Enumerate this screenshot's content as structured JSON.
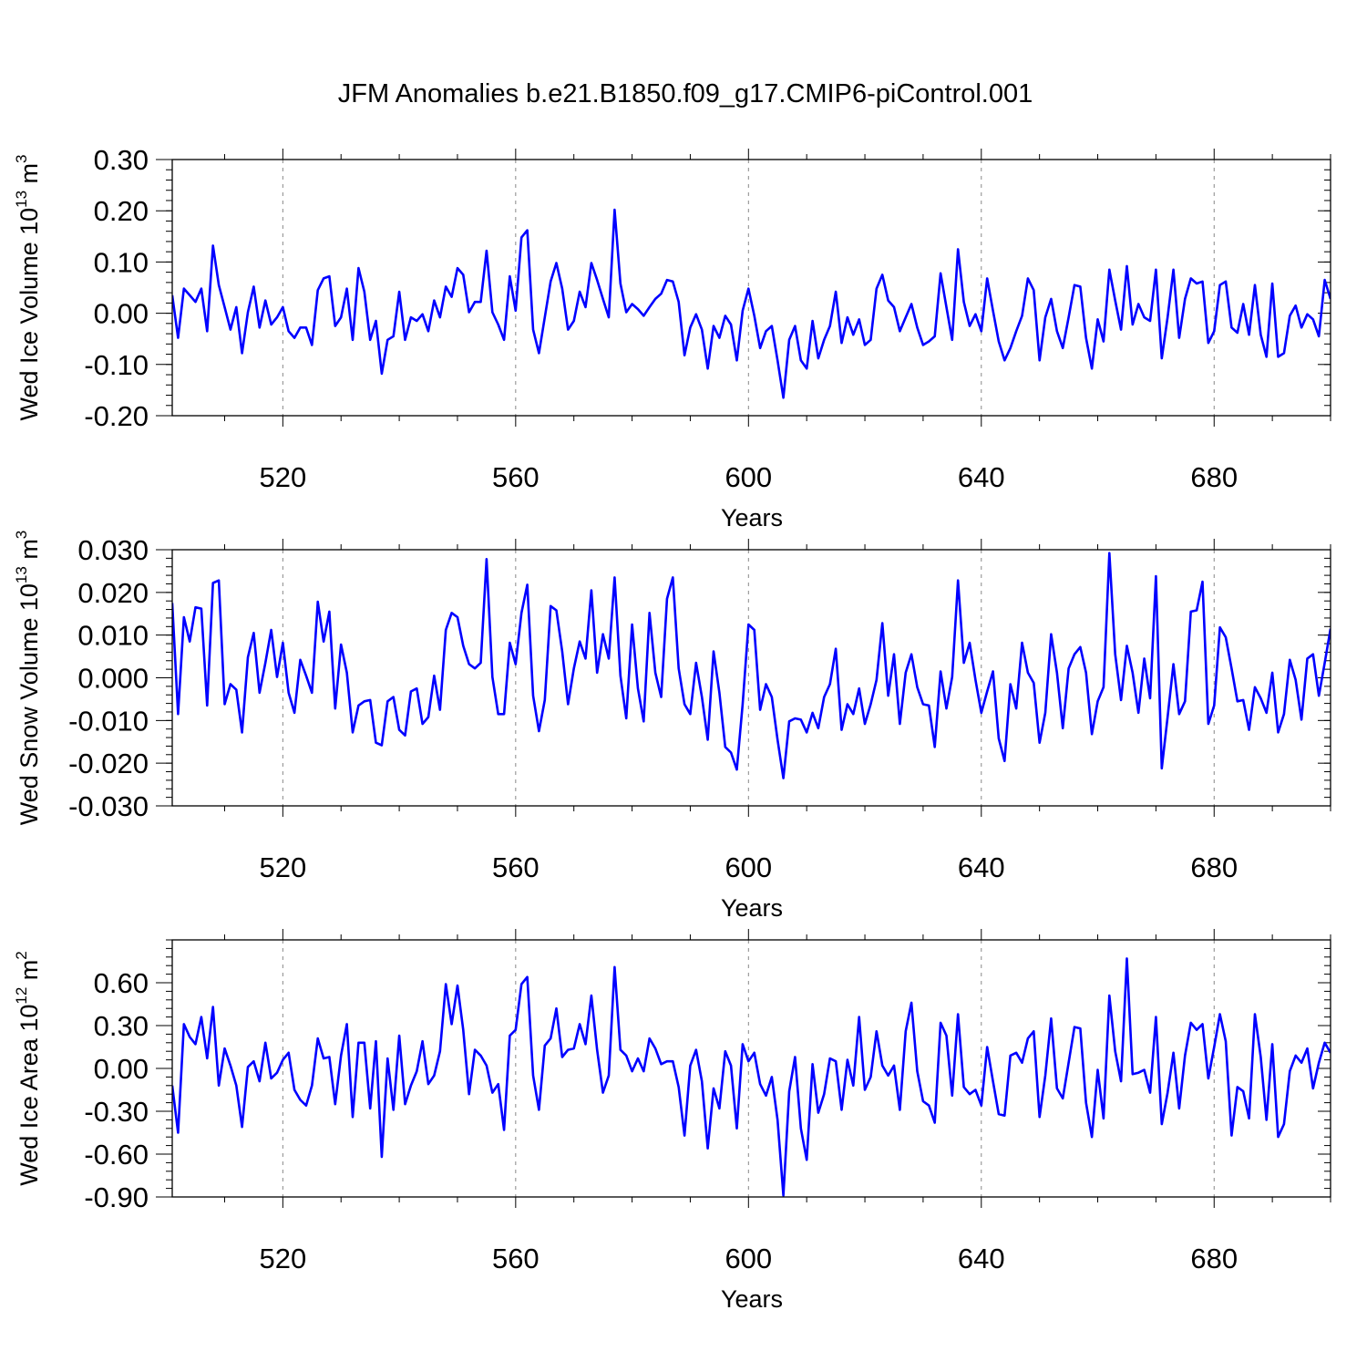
{
  "title": "JFM Anomalies b.e21.B1850.f09_g17.CMIP6-piControl.001",
  "colors": {
    "line": "#0000ff",
    "axis": "#000000",
    "grid": "#888888"
  },
  "chart_data": [
    {
      "type": "line",
      "ylabel": "Wed Ice Volume 10",
      "ylabel_exp": "13",
      "ylabel_unit": " m",
      "ylabel_unit_exp": "3",
      "xlabel": "Years",
      "xlim": [
        501,
        700
      ],
      "ylim": [
        -0.2,
        0.3
      ],
      "yticks": [
        "0.30",
        "0.20",
        "0.10",
        "0.00",
        "-0.10",
        "-0.20"
      ],
      "ytick_values": [
        0.3,
        0.2,
        0.1,
        0.0,
        -0.1,
        -0.2
      ],
      "xticks": [
        "520",
        "560",
        "600",
        "640",
        "680"
      ],
      "xtick_values": [
        520,
        560,
        600,
        640,
        680
      ],
      "grid": "vertical-dashed",
      "x_start": 501,
      "values": [
        0.035,
        -0.048,
        0.048,
        0.035,
        0.022,
        0.048,
        -0.035,
        0.132,
        0.055,
        0.012,
        -0.032,
        0.012,
        -0.078,
        0.002,
        0.052,
        -0.028,
        0.025,
        -0.022,
        -0.008,
        0.012,
        -0.035,
        -0.048,
        -0.028,
        -0.028,
        -0.062,
        0.045,
        0.068,
        0.072,
        -0.025,
        -0.008,
        0.048,
        -0.052,
        0.088,
        0.042,
        -0.052,
        -0.015,
        -0.118,
        -0.052,
        -0.045,
        0.042,
        -0.052,
        -0.008,
        -0.015,
        -0.002,
        -0.035,
        0.025,
        -0.008,
        0.052,
        0.032,
        0.088,
        0.075,
        0.002,
        0.022,
        0.022,
        0.122,
        0.002,
        -0.022,
        -0.052,
        0.072,
        0.005,
        0.148,
        0.162,
        -0.032,
        -0.078,
        -0.008,
        0.062,
        0.098,
        0.048,
        -0.032,
        -0.015,
        0.042,
        0.012,
        0.098,
        0.065,
        0.028,
        -0.008,
        0.202,
        0.058,
        0.002,
        0.018,
        0.008,
        -0.005,
        0.012,
        0.028,
        0.038,
        0.065,
        0.062,
        0.022,
        -0.082,
        -0.028,
        -0.002,
        -0.032,
        -0.108,
        -0.025,
        -0.048,
        -0.005,
        -0.022,
        -0.092,
        0.005,
        0.048,
        -0.005,
        -0.068,
        -0.035,
        -0.025,
        -0.092,
        -0.165,
        -0.052,
        -0.025,
        -0.092,
        -0.108,
        -0.015,
        -0.088,
        -0.052,
        -0.025,
        0.042,
        -0.058,
        -0.008,
        -0.042,
        -0.012,
        -0.062,
        -0.052,
        0.048,
        0.075,
        0.025,
        0.012,
        -0.035,
        -0.008,
        0.018,
        -0.028,
        -0.062,
        -0.055,
        -0.045,
        0.078,
        0.012,
        -0.052,
        0.125,
        0.022,
        -0.025,
        -0.002,
        -0.035,
        0.068,
        0.005,
        -0.055,
        -0.092,
        -0.068,
        -0.035,
        -0.005,
        0.068,
        0.045,
        -0.092,
        -0.008,
        0.028,
        -0.035,
        -0.068,
        -0.008,
        0.055,
        0.052,
        -0.048,
        -0.108,
        -0.012,
        -0.055,
        0.085,
        0.025,
        -0.032,
        0.092,
        -0.022,
        0.018,
        -0.008,
        -0.015,
        0.085,
        -0.088,
        -0.008,
        0.085,
        -0.048,
        0.028,
        0.068,
        0.058,
        0.062,
        -0.058,
        -0.035,
        0.055,
        0.062,
        -0.028,
        -0.038,
        0.018,
        -0.042,
        0.055,
        -0.042,
        -0.085,
        0.058,
        -0.085,
        -0.078,
        -0.005,
        0.015,
        -0.028,
        -0.002,
        -0.012,
        -0.045,
        0.065,
        0.028
      ]
    },
    {
      "type": "line",
      "ylabel": "Wed Snow Volume 10",
      "ylabel_exp": "13",
      "ylabel_unit": " m",
      "ylabel_unit_exp": "3",
      "xlabel": "Years",
      "xlim": [
        501,
        700
      ],
      "ylim": [
        -0.03,
        0.03
      ],
      "yticks": [
        "0.030",
        "0.020",
        "0.010",
        "0.000",
        "-0.010",
        "-0.020",
        "-0.030"
      ],
      "ytick_values": [
        0.03,
        0.02,
        0.01,
        0.0,
        -0.01,
        -0.02,
        -0.03
      ],
      "xticks": [
        "520",
        "560",
        "600",
        "640",
        "680"
      ],
      "xtick_values": [
        520,
        560,
        600,
        640,
        680
      ],
      "grid": "vertical-dashed",
      "x_start": 501,
      "values": [
        0.0175,
        -0.0085,
        0.0142,
        0.0085,
        0.0165,
        0.0162,
        -0.0065,
        0.0222,
        0.0228,
        -0.0062,
        -0.0015,
        -0.0028,
        -0.0128,
        0.0048,
        0.0105,
        -0.0035,
        0.0035,
        0.0112,
        0.0002,
        0.0082,
        -0.0035,
        -0.0082,
        0.0042,
        0.0005,
        -0.0035,
        0.0178,
        0.0085,
        0.0155,
        -0.0072,
        0.0078,
        0.0012,
        -0.0128,
        -0.0065,
        -0.0055,
        -0.0052,
        -0.0152,
        -0.0158,
        -0.0055,
        -0.0045,
        -0.0122,
        -0.0135,
        -0.0032,
        -0.0025,
        -0.0108,
        -0.0092,
        0.0005,
        -0.0075,
        0.0112,
        0.0152,
        0.0142,
        0.0075,
        0.0032,
        0.0022,
        0.0035,
        0.0278,
        0.0002,
        -0.0085,
        -0.0085,
        0.0082,
        0.0032,
        0.0152,
        0.0218,
        -0.0042,
        -0.0125,
        -0.0052,
        0.0168,
        0.0158,
        0.0062,
        -0.0062,
        0.0022,
        0.0085,
        0.0045,
        0.0205,
        0.0012,
        0.0102,
        0.0045,
        0.0235,
        0.0005,
        -0.0095,
        0.0125,
        -0.0025,
        -0.0102,
        0.0152,
        0.0012,
        -0.0045,
        0.0185,
        0.0235,
        0.0022,
        -0.0062,
        -0.0085,
        0.0035,
        -0.0045,
        -0.0145,
        0.0062,
        -0.0035,
        -0.0162,
        -0.0175,
        -0.0215,
        -0.0062,
        0.0125,
        0.0112,
        -0.0075,
        -0.0015,
        -0.0045,
        -0.0145,
        -0.0235,
        -0.0102,
        -0.0095,
        -0.0098,
        -0.0128,
        -0.0082,
        -0.0118,
        -0.0045,
        -0.0015,
        0.0068,
        -0.0122,
        -0.0062,
        -0.0085,
        -0.0025,
        -0.0108,
        -0.0062,
        -0.0005,
        0.0128,
        -0.0042,
        0.0055,
        -0.0108,
        0.0012,
        0.0055,
        -0.0022,
        -0.0062,
        -0.0065,
        -0.0162,
        0.0015,
        -0.0072,
        0.0002,
        0.0228,
        0.0035,
        0.0082,
        -0.0005,
        -0.0082,
        -0.0032,
        0.0015,
        -0.0142,
        -0.0195,
        -0.0015,
        -0.0072,
        0.0082,
        0.0012,
        -0.0012,
        -0.0152,
        -0.0082,
        0.0102,
        0.0012,
        -0.0118,
        0.0022,
        0.0055,
        0.0072,
        0.0012,
        -0.0132,
        -0.0055,
        -0.0022,
        0.0292,
        0.0055,
        -0.0052,
        0.0075,
        0.0012,
        -0.0082,
        0.0045,
        -0.0048,
        0.0238,
        -0.0212,
        -0.0092,
        0.0032,
        -0.0085,
        -0.0055,
        0.0155,
        0.0158,
        0.0225,
        -0.0108,
        -0.0065,
        0.0118,
        0.0095,
        0.0022,
        -0.0055,
        -0.0052,
        -0.0122,
        -0.0022,
        -0.0048,
        -0.0082,
        0.0012,
        -0.0128,
        -0.0085,
        0.0042,
        -0.0005,
        -0.0098,
        0.0045,
        0.0055,
        -0.0042,
        0.0035,
        0.0115
      ]
    },
    {
      "type": "line",
      "ylabel": "Wed Ice Area 10",
      "ylabel_exp": "12",
      "ylabel_unit": " m",
      "ylabel_unit_exp": "2",
      "xlabel": "Years",
      "xlim": [
        501,
        700
      ],
      "ylim": [
        -0.9,
        0.9
      ],
      "yticks": [
        "0.60",
        "0.30",
        "0.00",
        "-0.30",
        "-0.60",
        "-0.90"
      ],
      "ytick_values": [
        0.6,
        0.3,
        0.0,
        -0.3,
        -0.6,
        -0.9
      ],
      "xticks": [
        "520",
        "560",
        "600",
        "640",
        "680"
      ],
      "xtick_values": [
        520,
        560,
        600,
        640,
        680
      ],
      "grid": "vertical-dashed",
      "x_start": 501,
      "values": [
        -0.12,
        -0.45,
        0.31,
        0.22,
        0.17,
        0.36,
        0.07,
        0.43,
        -0.12,
        0.14,
        0.02,
        -0.12,
        -0.41,
        0.01,
        0.05,
        -0.09,
        0.18,
        -0.07,
        -0.03,
        0.06,
        0.11,
        -0.15,
        -0.22,
        -0.26,
        -0.12,
        0.21,
        0.07,
        0.08,
        -0.25,
        0.09,
        0.31,
        -0.34,
        0.18,
        0.18,
        -0.28,
        0.19,
        -0.62,
        0.07,
        -0.29,
        0.23,
        -0.25,
        -0.12,
        -0.02,
        0.19,
        -0.11,
        -0.05,
        0.12,
        0.59,
        0.31,
        0.58,
        0.27,
        -0.18,
        0.13,
        0.09,
        0.02,
        -0.17,
        -0.11,
        -0.43,
        0.23,
        0.27,
        0.59,
        0.64,
        -0.05,
        -0.29,
        0.16,
        0.21,
        0.42,
        0.08,
        0.13,
        0.14,
        0.31,
        0.17,
        0.51,
        0.13,
        -0.17,
        -0.05,
        0.71,
        0.13,
        0.09,
        -0.02,
        0.07,
        -0.02,
        0.21,
        0.14,
        0.03,
        0.05,
        0.05,
        -0.13,
        -0.47,
        0.02,
        0.13,
        -0.09,
        -0.56,
        -0.14,
        -0.28,
        0.12,
        0.02,
        -0.42,
        0.17,
        0.05,
        0.11,
        -0.11,
        -0.19,
        -0.06,
        -0.36,
        -0.89,
        -0.16,
        0.08,
        -0.42,
        -0.64,
        0.03,
        -0.31,
        -0.18,
        0.07,
        0.05,
        -0.29,
        0.06,
        -0.12,
        0.36,
        -0.15,
        -0.06,
        0.26,
        0.02,
        -0.05,
        0.02,
        -0.29,
        0.26,
        0.46,
        -0.02,
        -0.23,
        -0.26,
        -0.38,
        0.32,
        0.23,
        -0.19,
        0.38,
        -0.13,
        -0.18,
        -0.15,
        -0.26,
        0.15,
        -0.09,
        -0.32,
        -0.33,
        0.09,
        0.11,
        0.04,
        0.21,
        0.26,
        -0.34,
        -0.05,
        0.35,
        -0.14,
        -0.21,
        0.04,
        0.29,
        0.28,
        -0.24,
        -0.48,
        -0.01,
        -0.35,
        0.51,
        0.12,
        -0.09,
        0.77,
        -0.04,
        -0.03,
        -0.01,
        -0.17,
        0.36,
        -0.39,
        -0.17,
        0.11,
        -0.28,
        0.09,
        0.32,
        0.27,
        0.31,
        -0.07,
        0.15,
        0.38,
        0.19,
        -0.47,
        -0.13,
        -0.16,
        -0.35,
        0.38,
        0.08,
        -0.36,
        0.17,
        -0.48,
        -0.39,
        -0.02,
        0.09,
        0.04,
        0.14,
        -0.14,
        0.04,
        0.18,
        0.11
      ]
    }
  ]
}
